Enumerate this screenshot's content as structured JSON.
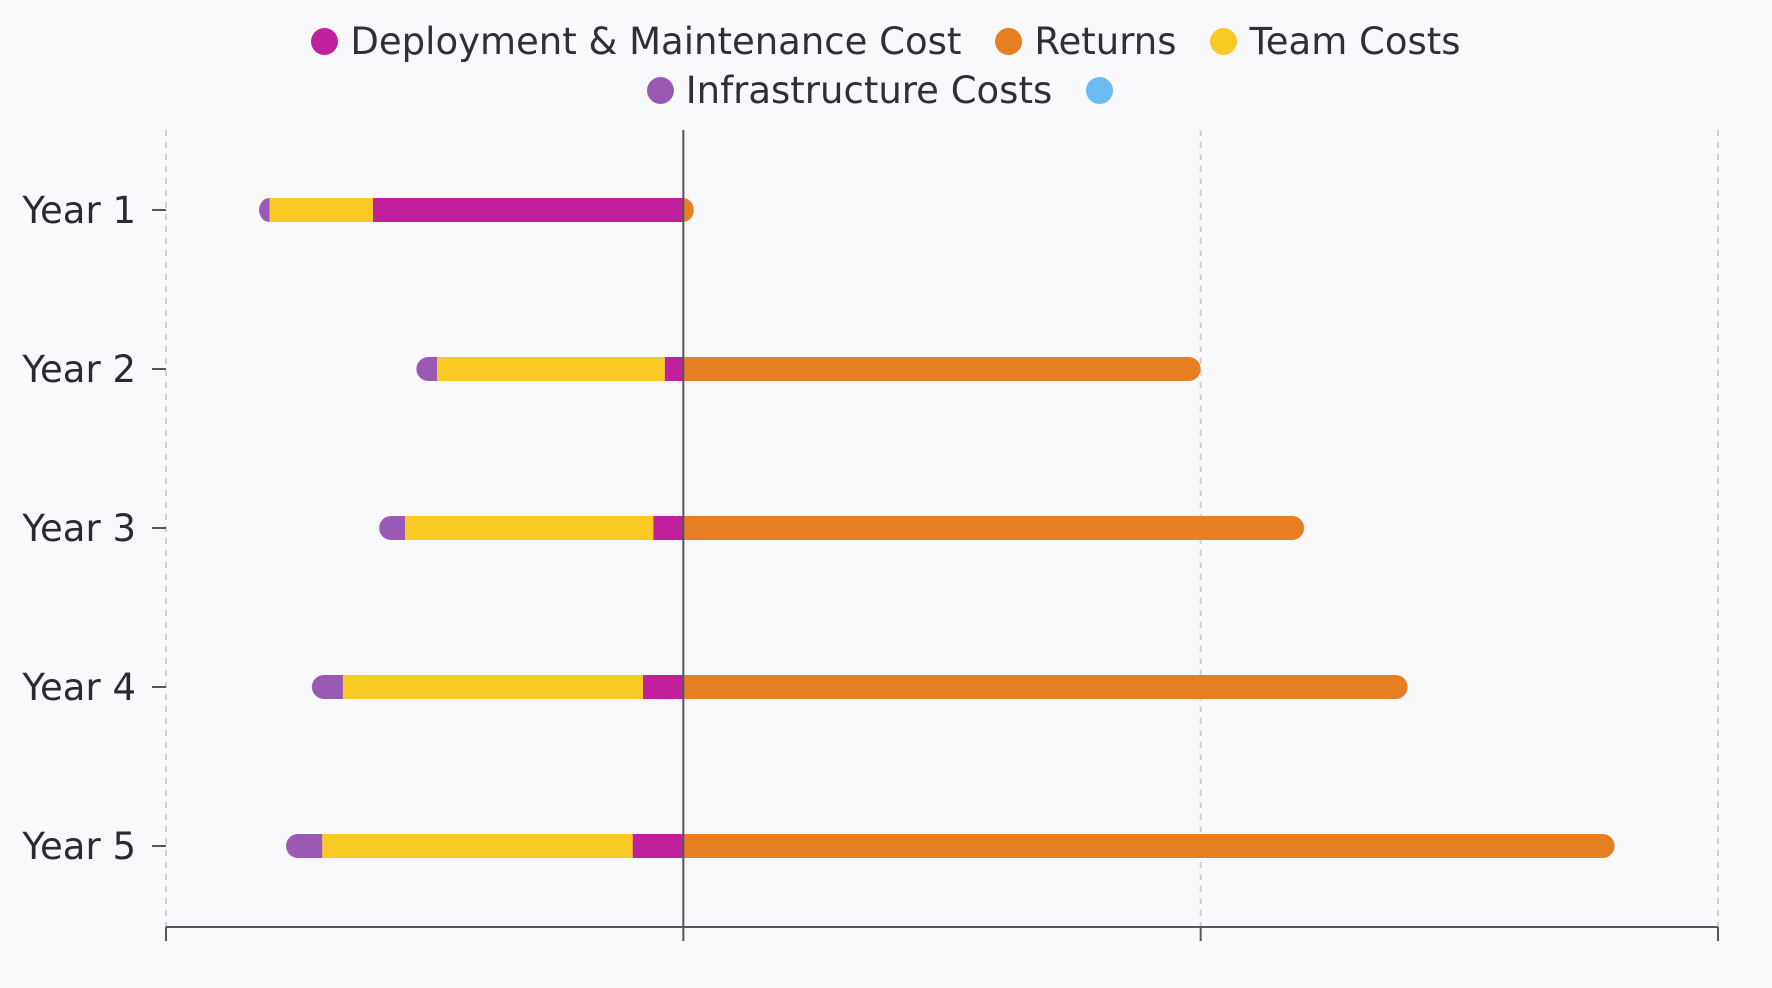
{
  "chart_data": {
    "type": "bar",
    "orientation": "horizontal",
    "stacked": true,
    "diverging": true,
    "categories": [
      "Year 1",
      "Year 2",
      "Year 3",
      "Year 4",
      "Year 5"
    ],
    "series": [
      {
        "name": "Deployment & Maintenance Cost",
        "color": "#c0209c",
        "values": [
          -300,
          -18,
          -29,
          -39,
          -49
        ]
      },
      {
        "name": "Returns",
        "color": "#e67e22",
        "values": [
          10,
          500,
          600,
          700,
          900
        ]
      },
      {
        "name": "Team Costs",
        "color": "#f9ca24",
        "values": [
          -100,
          -220,
          -240,
          -290,
          -300
        ]
      },
      {
        "name": "Infrastructure Costs",
        "color": "#9b59b6",
        "values": [
          -10,
          -20,
          -25,
          -30,
          -35
        ]
      },
      {
        "name": "",
        "color": "#6bbcf2",
        "values": [
          0,
          0,
          0,
          0,
          0
        ]
      }
    ],
    "xlim": [
      -500,
      1000
    ],
    "grid": {
      "x": true,
      "y": false
    },
    "legend_position": "top"
  }
}
